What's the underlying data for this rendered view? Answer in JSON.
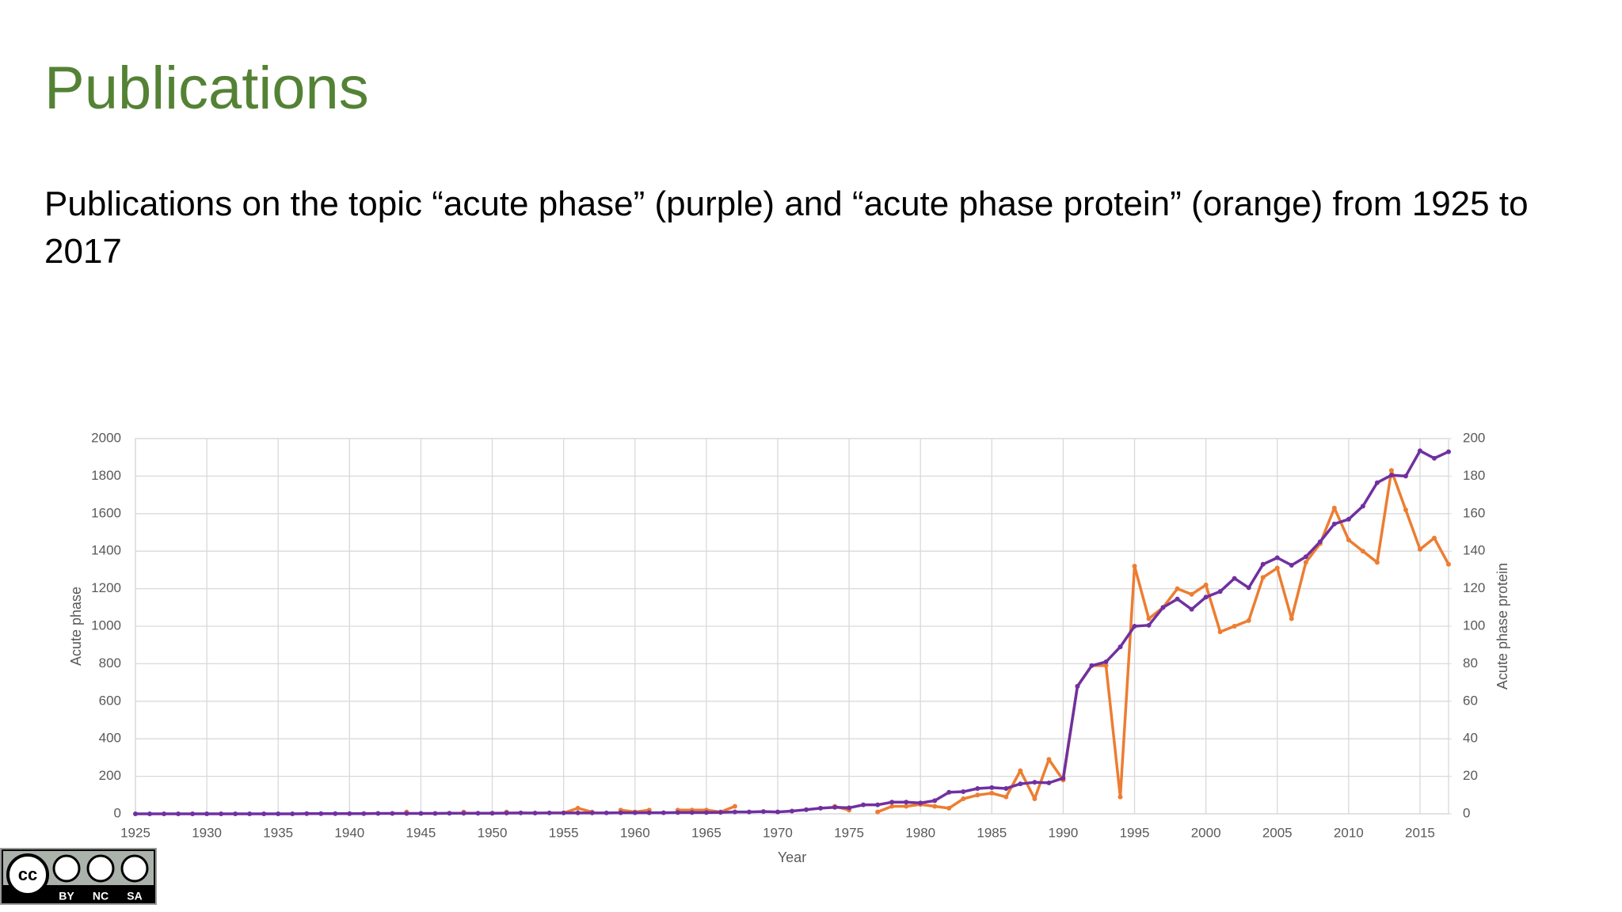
{
  "header": {
    "title": "Publications",
    "subtitle": "Publications on the topic “acute phase” (purple) and “acute phase protein” (orange) from 1925 to 2017"
  },
  "license": {
    "labels": [
      "cc",
      "BY",
      "NC",
      "SA"
    ]
  },
  "chart_data": {
    "type": "line",
    "x": [
      1925,
      1926,
      1927,
      1928,
      1929,
      1930,
      1931,
      1932,
      1933,
      1934,
      1935,
      1936,
      1937,
      1938,
      1939,
      1940,
      1941,
      1942,
      1943,
      1944,
      1945,
      1946,
      1947,
      1948,
      1949,
      1950,
      1951,
      1952,
      1953,
      1954,
      1955,
      1956,
      1957,
      1958,
      1959,
      1960,
      1961,
      1962,
      1963,
      1964,
      1965,
      1966,
      1967,
      1968,
      1969,
      1970,
      1971,
      1972,
      1973,
      1974,
      1975,
      1976,
      1977,
      1978,
      1979,
      1980,
      1981,
      1982,
      1983,
      1984,
      1985,
      1986,
      1987,
      1988,
      1989,
      1990,
      1991,
      1992,
      1993,
      1994,
      1995,
      1996,
      1997,
      1998,
      1999,
      2000,
      2001,
      2002,
      2003,
      2004,
      2005,
      2006,
      2007,
      2008,
      2009,
      2010,
      2011,
      2012,
      2013,
      2014,
      2015,
      2016,
      2017
    ],
    "series": [
      {
        "name": "Acute phase",
        "color": "#7030a0",
        "values": [
          0,
          0,
          0,
          0,
          0,
          0,
          0,
          0,
          0,
          0,
          0,
          0,
          1,
          1,
          1,
          1,
          1,
          2,
          2,
          2,
          2,
          2,
          3,
          3,
          3,
          3,
          4,
          5,
          4,
          5,
          5,
          5,
          5,
          5,
          6,
          6,
          6,
          6,
          7,
          7,
          7,
          8,
          10,
          10,
          12,
          10,
          15,
          22,
          30,
          35,
          32,
          48,
          48,
          62,
          62,
          58,
          70,
          115,
          118,
          135,
          140,
          135,
          160,
          168,
          165,
          190,
          680,
          790,
          810,
          890,
          1000,
          1005,
          1100,
          1145,
          1090,
          1155,
          1185,
          1255,
          1205,
          1330,
          1365,
          1325,
          1370,
          1450,
          1545,
          1570,
          1640,
          1765,
          1805,
          1800,
          1935,
          1895,
          1930
        ]
      },
      {
        "name": "Acute phase protein",
        "color": "#ed7d31",
        "axis": "y2",
        "values": [
          null,
          null,
          null,
          null,
          null,
          null,
          null,
          null,
          null,
          null,
          null,
          null,
          null,
          null,
          null,
          null,
          null,
          null,
          null,
          1,
          null,
          null,
          null,
          1,
          null,
          null,
          1,
          null,
          null,
          null,
          0.5,
          3,
          1,
          null,
          2,
          1,
          2,
          null,
          2,
          2,
          2,
          1,
          4,
          null,
          null,
          1,
          null,
          null,
          null,
          4,
          2,
          null,
          1,
          4,
          4,
          5,
          4,
          3,
          8,
          10,
          11,
          9,
          23,
          8,
          29,
          18,
          68,
          79,
          79,
          9,
          132,
          104,
          110,
          120,
          117,
          122,
          97,
          100,
          103,
          126,
          131,
          104,
          134,
          144,
          163,
          146,
          140,
          134,
          183,
          162,
          141,
          147,
          133
        ]
      }
    ],
    "xlim": [
      1925,
      2017
    ],
    "xticks": [
      1925,
      1930,
      1935,
      1940,
      1945,
      1950,
      1955,
      1960,
      1965,
      1970,
      1975,
      1980,
      1985,
      1990,
      1995,
      2000,
      2005,
      2010,
      2015
    ],
    "ylim": [
      0,
      2000
    ],
    "yticks": [
      0,
      200,
      400,
      600,
      800,
      1000,
      1200,
      1400,
      1600,
      1800,
      2000
    ],
    "y2lim": [
      0,
      200
    ],
    "y2ticks": [
      0,
      20,
      40,
      60,
      80,
      100,
      120,
      140,
      160,
      180,
      200
    ],
    "x_label": "Year",
    "y_label": "Acute phase",
    "y2_label": "Acute phase protein",
    "grid": true
  }
}
